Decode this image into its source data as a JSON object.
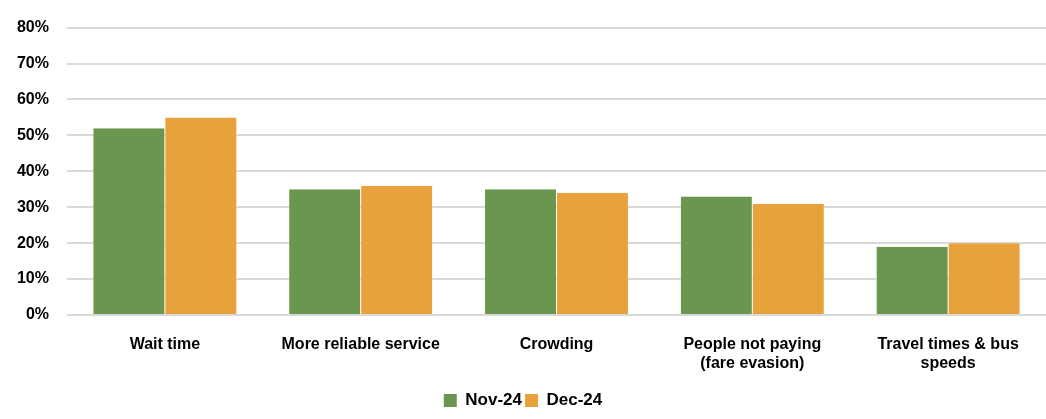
{
  "chart_data": {
    "type": "bar",
    "categories": [
      "Wait time",
      "More reliable service",
      "Crowding",
      "People not paying (fare evasion)",
      "Travel times & bus speeds"
    ],
    "series": [
      {
        "name": "Nov-24",
        "color": "#6a9650",
        "values": [
          52,
          35,
          35,
          33,
          19
        ]
      },
      {
        "name": "Dec-24",
        "color": "#e8a23c",
        "values": [
          55,
          36,
          34,
          31,
          20
        ]
      }
    ],
    "ylim": [
      0,
      80
    ],
    "yticks": [
      {
        "value": 0,
        "label": "0%"
      },
      {
        "value": 10,
        "label": "10%"
      },
      {
        "value": 20,
        "label": "20%"
      },
      {
        "value": 30,
        "label": "30%"
      },
      {
        "value": 40,
        "label": "40%"
      },
      {
        "value": 50,
        "label": "50%"
      },
      {
        "value": 60,
        "label": "60%"
      },
      {
        "value": 70,
        "label": "70%"
      },
      {
        "value": 80,
        "label": "80%"
      }
    ],
    "grid": "y",
    "legend": "bottom"
  }
}
